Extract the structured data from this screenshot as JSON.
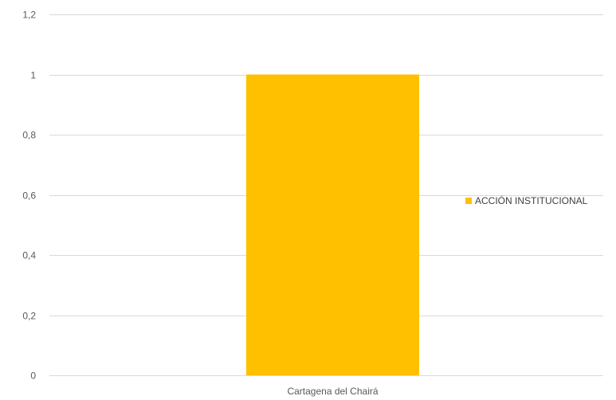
{
  "chart_data": {
    "type": "bar",
    "categories": [
      "Cartagena del Chairá"
    ],
    "series": [
      {
        "name": "ACCIÓN INSTITUCIONAL",
        "values": [
          1
        ],
        "color": "#FFC000"
      }
    ],
    "ylim": [
      0,
      1.2
    ],
    "yticks": [
      "0",
      "0,2",
      "0,4",
      "0,6",
      "0,8",
      "1",
      "1,2"
    ],
    "ytick_values": [
      0,
      0.2,
      0.4,
      0.6,
      0.8,
      1,
      1.2
    ],
    "grid": true,
    "legend_position": "right",
    "gridline_color": "#D9D9D9"
  }
}
